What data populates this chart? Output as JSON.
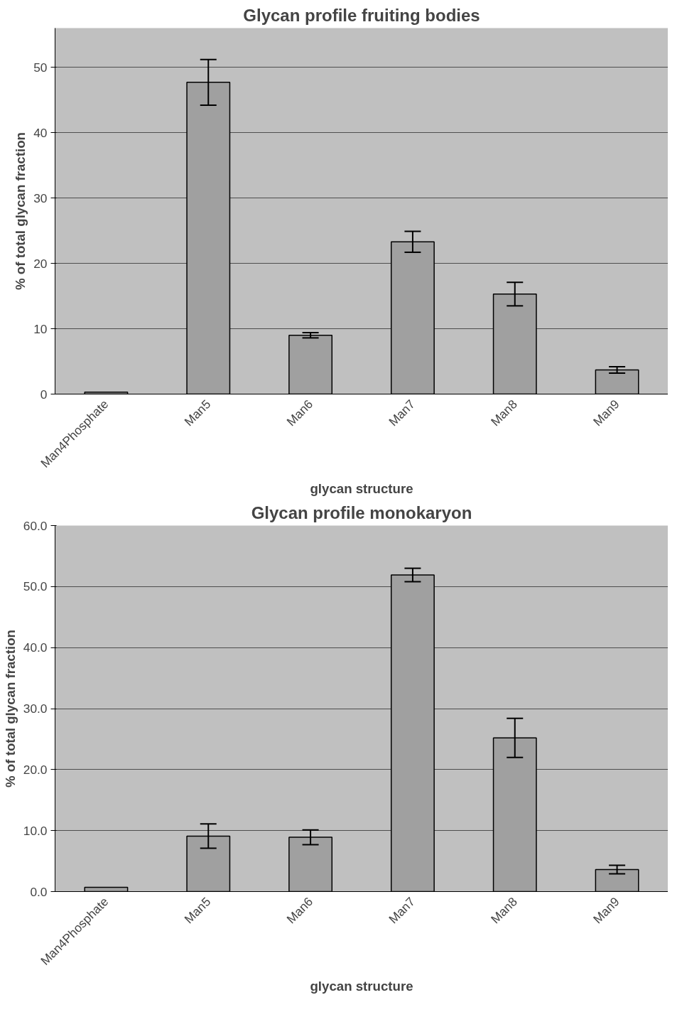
{
  "chart_data": [
    {
      "type": "bar",
      "title": "Glycan profile fruiting bodies",
      "xlabel": "glycan structure",
      "ylabel": "% of total glycan fraction",
      "categories": [
        "Man4Phosphate",
        "Man5",
        "Man6",
        "Man7",
        "Man8",
        "Man9"
      ],
      "series": [
        {
          "color": "#a0a0a0",
          "values": [
            0.3,
            47.7,
            9.0,
            23.3,
            15.3,
            3.7
          ],
          "errors": [
            null,
            3.5,
            0.4,
            1.6,
            1.8,
            0.5
          ]
        }
      ],
      "ylim": [
        0,
        56
      ],
      "yticks": [
        0,
        10,
        20,
        30,
        40,
        50
      ],
      "grid": "y"
    },
    {
      "type": "bar",
      "title": "Glycan profile monokaryon",
      "xlabel": "glycan structure",
      "ylabel": "% of total glycan fraction",
      "categories": [
        "Man4Phosphate",
        "Man5",
        "Man6",
        "Man7",
        "Man8",
        "Man9"
      ],
      "series": [
        {
          "color": "#a0a0a0",
          "values": [
            0.7,
            9.1,
            8.9,
            51.9,
            25.2,
            3.6
          ],
          "errors": [
            null,
            2.0,
            1.2,
            1.1,
            3.2,
            0.7
          ]
        }
      ],
      "ylim": [
        0,
        60
      ],
      "yticks": [
        {
          "value": 0,
          "label": "0.0"
        },
        {
          "value": 10,
          "label": "10.0"
        },
        {
          "value": 20,
          "label": "20.0"
        },
        {
          "value": 30,
          "label": "30.0"
        },
        {
          "value": 40,
          "label": "40.0"
        },
        {
          "value": 50,
          "label": "50.0"
        },
        {
          "value": 60,
          "label": "60.0"
        }
      ],
      "grid": "y"
    }
  ]
}
